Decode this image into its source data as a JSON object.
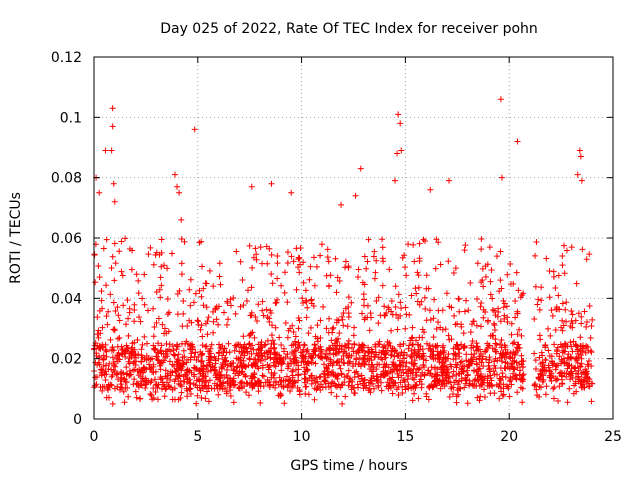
{
  "chart_data": {
    "type": "scatter",
    "title": "Day 025 of 2022, Rate Of TEC Index for receiver pohn",
    "xlabel": "GPS time / hours",
    "ylabel": "ROTI / TECUs",
    "xlim": [
      0,
      25
    ],
    "ylim": [
      0,
      0.12
    ],
    "x_ticks": [
      0,
      5,
      10,
      15,
      20,
      25
    ],
    "y_ticks": [
      0,
      0.02,
      0.04,
      0.06,
      0.08,
      0.1,
      0.12
    ],
    "x_tick_labels": [
      "0",
      "5",
      "10",
      "15",
      "20",
      "25"
    ],
    "y_tick_labels": [
      "0",
      "0.02",
      "0.04",
      "0.06",
      "0.08",
      "0.1",
      "0.12"
    ],
    "grid": true,
    "marker": "plus",
    "color": "#ff0000",
    "series": [
      {
        "name": "ROTI",
        "notable_points": [
          {
            "x": 0.1,
            "y": 0.08
          },
          {
            "x": 0.25,
            "y": 0.075
          },
          {
            "x": 0.55,
            "y": 0.089
          },
          {
            "x": 0.85,
            "y": 0.089
          },
          {
            "x": 0.9,
            "y": 0.103
          },
          {
            "x": 0.9,
            "y": 0.097
          },
          {
            "x": 0.95,
            "y": 0.078
          },
          {
            "x": 1.0,
            "y": 0.072
          },
          {
            "x": 3.9,
            "y": 0.081
          },
          {
            "x": 4.0,
            "y": 0.077
          },
          {
            "x": 4.1,
            "y": 0.075
          },
          {
            "x": 4.2,
            "y": 0.066
          },
          {
            "x": 4.85,
            "y": 0.096
          },
          {
            "x": 7.6,
            "y": 0.077
          },
          {
            "x": 8.55,
            "y": 0.078
          },
          {
            "x": 9.5,
            "y": 0.075
          },
          {
            "x": 11.9,
            "y": 0.071
          },
          {
            "x": 12.6,
            "y": 0.074
          },
          {
            "x": 12.85,
            "y": 0.083
          },
          {
            "x": 14.5,
            "y": 0.079
          },
          {
            "x": 14.6,
            "y": 0.088
          },
          {
            "x": 14.65,
            "y": 0.101
          },
          {
            "x": 14.75,
            "y": 0.098
          },
          {
            "x": 14.8,
            "y": 0.089
          },
          {
            "x": 16.2,
            "y": 0.076
          },
          {
            "x": 17.1,
            "y": 0.079
          },
          {
            "x": 19.6,
            "y": 0.106
          },
          {
            "x": 19.65,
            "y": 0.08
          },
          {
            "x": 20.4,
            "y": 0.092
          },
          {
            "x": 23.3,
            "y": 0.081
          },
          {
            "x": 23.4,
            "y": 0.089
          },
          {
            "x": 23.45,
            "y": 0.087
          },
          {
            "x": 23.5,
            "y": 0.079
          }
        ],
        "bulk": {
          "x_range": [
            0,
            24
          ],
          "typical_y_range": [
            0.005,
            0.04
          ],
          "dense_band_y_range": [
            0.01,
            0.025
          ],
          "upper_envelope_y": 0.06,
          "min_y": 0.004,
          "gap_x_ranges": [
            [
              20.7,
              21.2
            ]
          ]
        }
      }
    ]
  }
}
